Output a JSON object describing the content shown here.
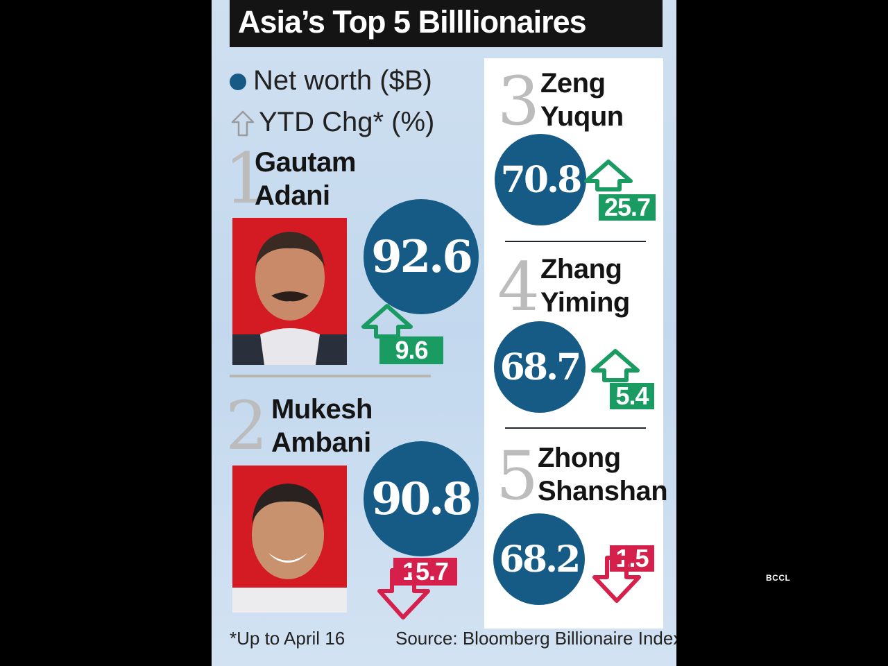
{
  "title": "Asia’s Top 5 Billlionaires",
  "legend": {
    "net_worth": "Net worth ($B)",
    "ytd_chg": "YTD Chg* (%)"
  },
  "colors": {
    "bubble": "#165a86",
    "up": "#1a9b62",
    "down": "#d4204a"
  },
  "chart_data": {
    "type": "table",
    "title": "Asia’s Top 5 Billlionaires",
    "columns": [
      "Net worth ($B)",
      "YTD Chg* (%)"
    ],
    "rows": [
      {
        "rank": "1",
        "first": "Gautam",
        "last": "Adani",
        "net_worth": "92.6",
        "ytd_chg": "9.6",
        "direction": "up"
      },
      {
        "rank": "2",
        "first": "Mukesh",
        "last": "Ambani",
        "net_worth": "90.8",
        "ytd_chg": "15.7",
        "direction": "down"
      },
      {
        "rank": "3",
        "first": "Zeng",
        "last": "Yuqun",
        "net_worth": "70.8",
        "ytd_chg": "25.7",
        "direction": "up"
      },
      {
        "rank": "4",
        "first": "Zhang",
        "last": "Yiming",
        "net_worth": "68.7",
        "ytd_chg": "5.4",
        "direction": "up"
      },
      {
        "rank": "5",
        "first": "Zhong",
        "last": "Shanshan",
        "net_worth": "68.2",
        "ytd_chg": "1.5",
        "direction": "down"
      }
    ]
  },
  "footnote": "*Up to April 16",
  "source": "Source: Bloomberg Billionaire Index",
  "watermark": "BCCL"
}
